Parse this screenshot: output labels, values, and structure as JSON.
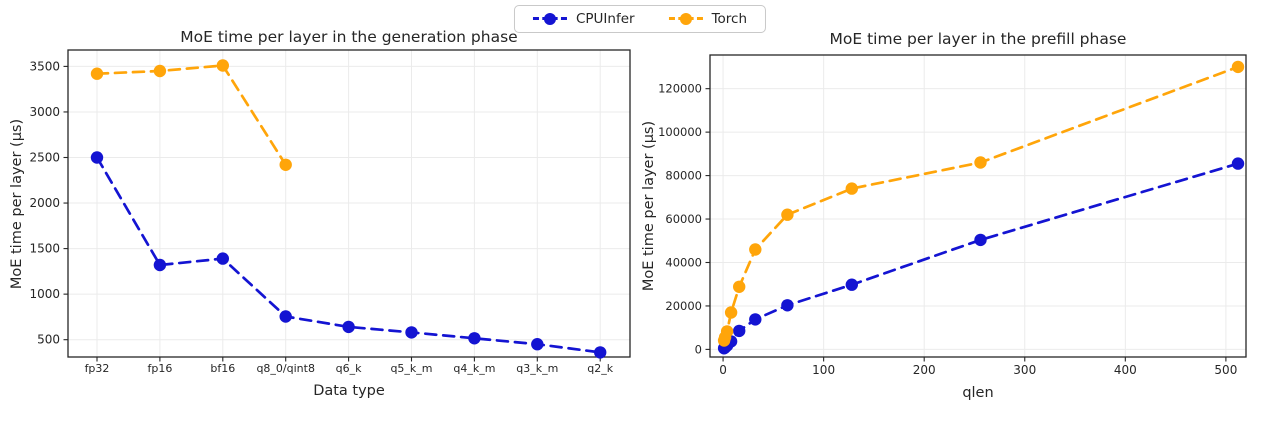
{
  "legend": {
    "items": [
      {
        "label": "CPUInfer",
        "color": "#1414d2"
      },
      {
        "label": "Torch",
        "color": "#ffa50a"
      }
    ]
  },
  "chart_data": [
    {
      "type": "line",
      "title": "MoE time per layer in the generation phase",
      "xlabel": "Data type",
      "ylabel": "MoE time per layer (µs)",
      "categories": [
        "fp32",
        "fp16",
        "bf16",
        "q8_0/qint8",
        "q6_k",
        "q5_k_m",
        "q4_k_m",
        "q3_k_m",
        "q2_k"
      ],
      "yticks": [
        500,
        1000,
        1500,
        2000,
        2500,
        3000,
        3500
      ],
      "ylim": [
        310,
        3680
      ],
      "grid": true,
      "line_style": "dashed",
      "marker": "circle",
      "series": [
        {
          "name": "CPUInfer",
          "color": "#1414d2",
          "values": [
            2500,
            1320,
            1390,
            755,
            640,
            580,
            515,
            450,
            360
          ]
        },
        {
          "name": "Torch",
          "color": "#ffa50a",
          "values": [
            3420,
            3450,
            3510,
            2420,
            null,
            null,
            null,
            null,
            null
          ]
        }
      ]
    },
    {
      "type": "line",
      "title": "MoE time per layer in the prefill phase",
      "xlabel": "qlen",
      "ylabel": "MoE time per layer (µs)",
      "x": [
        1,
        2,
        4,
        8,
        16,
        32,
        64,
        128,
        256,
        512
      ],
      "xticks": [
        0,
        100,
        200,
        300,
        400,
        500
      ],
      "yticks": [
        0,
        20000,
        40000,
        60000,
        80000,
        100000,
        120000
      ],
      "xlim": [
        -13,
        520
      ],
      "ylim": [
        -3500,
        135500
      ],
      "grid": true,
      "line_style": "dashed",
      "marker": "circle",
      "series": [
        {
          "name": "CPUInfer",
          "color": "#1414d2",
          "values": [
            500,
            900,
            1800,
            3700,
            8500,
            13800,
            20300,
            29800,
            50400,
            85500
          ]
        },
        {
          "name": "Torch",
          "color": "#ffa50a",
          "values": [
            4100,
            5600,
            8300,
            17000,
            28800,
            46000,
            62000,
            74000,
            86000,
            130000
          ]
        }
      ]
    }
  ]
}
